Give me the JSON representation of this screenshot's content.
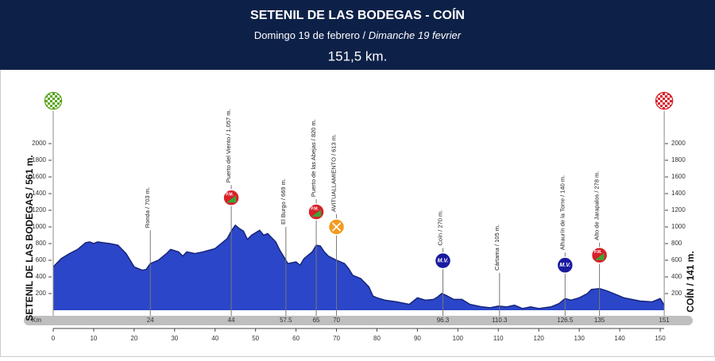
{
  "chart_data": {
    "type": "area",
    "title": "SETENIL DE LAS BODEGAS - COÍN",
    "subtitle_es": "Domingo 19 de febrero /",
    "subtitle_fr": "Dimanche 19 fevrier",
    "distance": "151,5 km.",
    "y_label_left": "SETENIL DE LAS BODEGAS / 561 m.",
    "y_label_right": "COÍN / 141 m.",
    "km_label": "Km",
    "finish_km": 151,
    "color": "#2b46c8",
    "line_color": "#16257a",
    "xlim": [
      0,
      150
    ],
    "xticks": [
      0,
      10,
      20,
      30,
      40,
      50,
      60,
      70,
      80,
      90,
      100,
      110,
      120,
      130,
      140,
      150
    ],
    "ylim": [
      0,
      2000
    ],
    "yticks": [
      200,
      400,
      600,
      800,
      1000,
      1200,
      1400,
      1600,
      1800,
      2000
    ],
    "x": [
      0,
      2,
      4,
      6,
      8,
      9,
      10,
      11,
      14,
      16,
      18,
      20,
      22,
      23,
      24,
      26,
      28,
      29,
      31,
      32,
      33,
      35,
      37,
      40,
      42,
      43,
      44,
      45,
      46,
      47,
      48,
      49,
      51,
      52,
      53,
      55,
      56,
      57,
      58,
      60,
      61,
      62,
      64,
      65,
      66,
      67,
      68,
      70,
      72,
      73,
      74,
      76,
      78,
      79,
      80,
      82,
      85,
      88,
      90,
      92,
      94,
      95,
      96,
      97,
      99,
      101,
      103,
      106,
      108,
      110,
      112,
      114,
      116,
      118,
      120,
      123,
      125,
      126.5,
      128,
      130,
      132,
      133,
      135,
      137,
      139,
      141,
      143,
      145,
      148,
      150,
      151
    ],
    "y": [
      520,
      620,
      680,
      730,
      810,
      820,
      800,
      820,
      800,
      780,
      680,
      520,
      480,
      490,
      560,
      600,
      680,
      730,
      700,
      650,
      700,
      680,
      700,
      740,
      820,
      860,
      950,
      1020,
      980,
      950,
      850,
      900,
      960,
      900,
      920,
      820,
      720,
      640,
      560,
      580,
      540,
      620,
      700,
      780,
      770,
      700,
      650,
      600,
      560,
      500,
      420,
      380,
      280,
      170,
      150,
      120,
      100,
      70,
      150,
      120,
      130,
      160,
      200,
      180,
      130,
      130,
      70,
      40,
      30,
      50,
      40,
      60,
      20,
      40,
      20,
      40,
      80,
      140,
      120,
      150,
      200,
      250,
      260,
      230,
      190,
      150,
      130,
      110,
      100,
      140,
      60
    ],
    "annotations": [
      {
        "km": 24,
        "label": "Ronda / 703 m."
      },
      {
        "km": 44,
        "label": "Puerto del Viento / 1.057 m.",
        "marker": "P.M."
      },
      {
        "km": 57.5,
        "label": "El Burgo / 669 m."
      },
      {
        "km": 65,
        "label": "Puerto de las Abejas / 820 m.",
        "marker": "P.M."
      },
      {
        "km": 70,
        "label": "AVITUALLAMIENTO / 613 m."
      },
      {
        "km": 96.3,
        "label": "Coín / 270 m.",
        "marker": "M.V."
      },
      {
        "km": 110.3,
        "label": "Cártama / 105 m."
      },
      {
        "km": 126.5,
        "label": "Alhaurín de la Torre / 140 m.",
        "marker": "M.V."
      },
      {
        "km": 135,
        "label": "Alto de Jarapalos / 278 m.",
        "marker": "P.M."
      }
    ]
  }
}
